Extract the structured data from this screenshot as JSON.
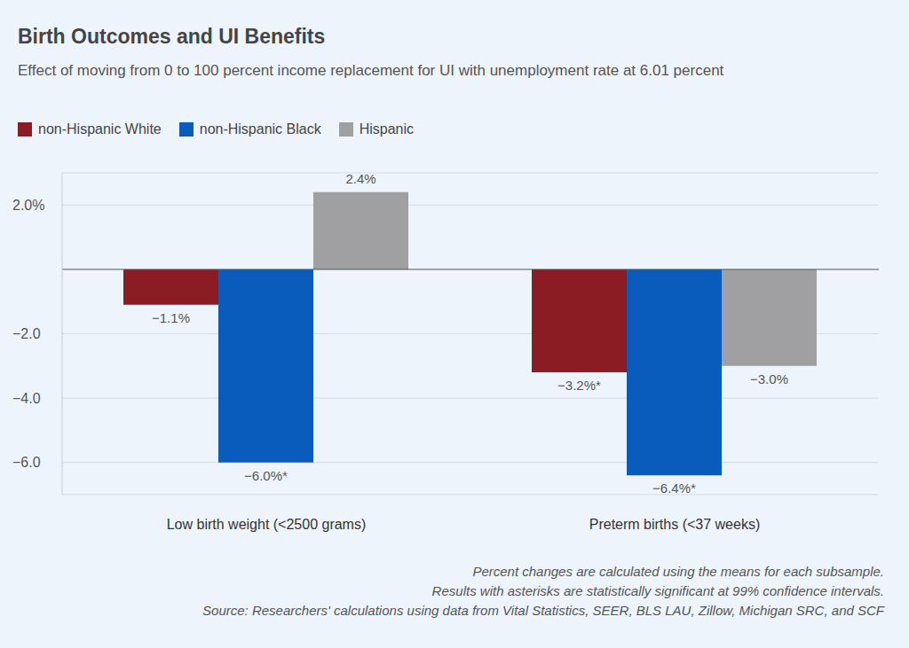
{
  "chart_data": {
    "type": "bar",
    "title": "Birth Outcomes and UI Benefits",
    "subtitle": "Effect of moving from 0 to 100 percent income replacement for UI with unemployment rate at 6.01 percent",
    "categories": [
      "Low birth weight (<2500 grams)",
      "Preterm births (<37 weeks)"
    ],
    "series": [
      {
        "name": "non-Hispanic White",
        "color": "#8c1c24",
        "values": [
          -1.1,
          -3.2
        ],
        "value_labels": [
          "−1.1%",
          "−3.2%*"
        ]
      },
      {
        "name": "non-Hispanic Black",
        "color": "#0a5cbc",
        "values": [
          -6.0,
          -6.4
        ],
        "value_labels": [
          "−6.0%*",
          "−6.4%*"
        ]
      },
      {
        "name": "Hispanic",
        "color": "#a0a0a3",
        "values": [
          2.4,
          -3.0
        ],
        "value_labels": [
          "2.4%",
          "−3.0%"
        ]
      }
    ],
    "ylim": [
      -7,
      3
    ],
    "yticks": [
      {
        "value": 2,
        "label": "2.0%"
      },
      {
        "value": -2,
        "label": "−2.0"
      },
      {
        "value": -4,
        "label": "−4.0"
      },
      {
        "value": -6,
        "label": "−6.0"
      }
    ],
    "grid": true,
    "legend": "top-left",
    "data_labels": true,
    "notes": [
      "Percent changes are calculated using the means for each subsample.",
      "Results with asterisks are statistically significant at 99% confidence intervals.",
      "Source: Researchers' calculations using data from Vital Statistics, SEER, BLS LAU, Zillow, Michigan SRC, and SCF"
    ]
  }
}
